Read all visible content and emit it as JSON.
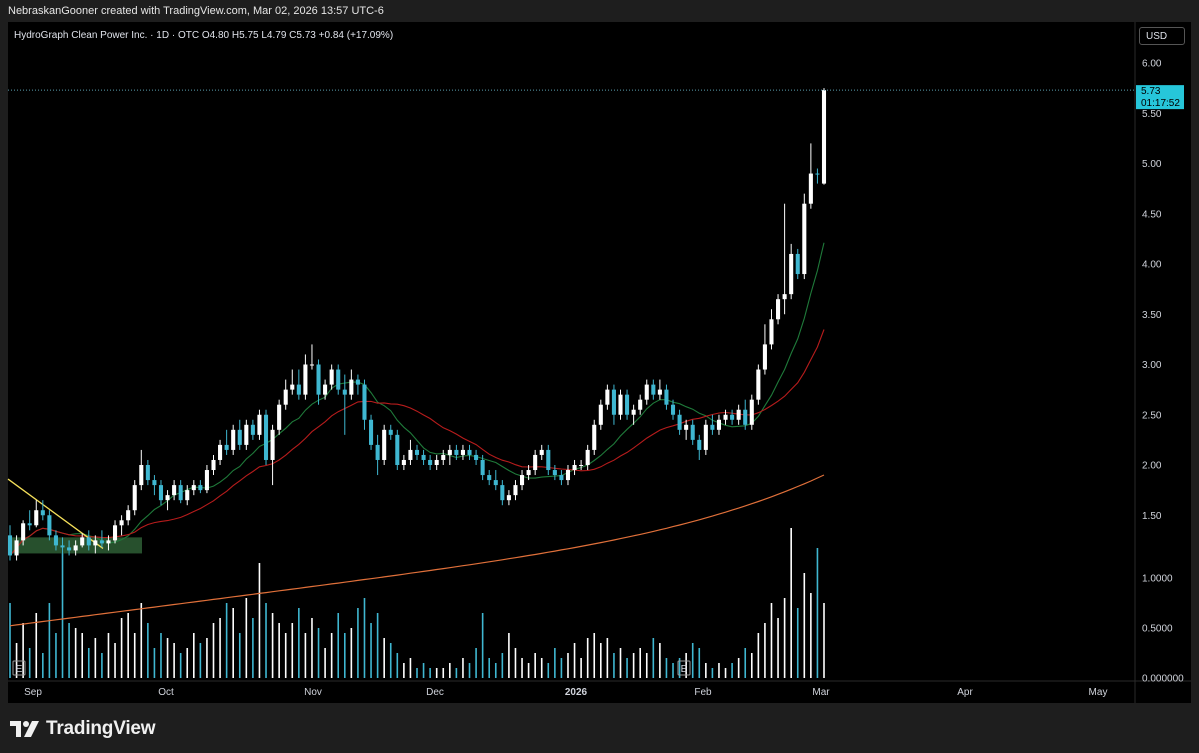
{
  "header": {
    "credit": "NebraskanGooner created with TradingView.com, Mar 02, 2026 13:57 UTC-6"
  },
  "legend": {
    "symbol": "HydroGraph Clean Power Inc. · 1D · OTC",
    "open_label": "O",
    "open": "4.80",
    "high_label": "H",
    "high": "5.75",
    "low_label": "L",
    "low": "4.79",
    "close_label": "C",
    "close": "5.73",
    "change": "+0.84 (+17.09%)"
  },
  "currency": "USD",
  "price_tag": {
    "price": "5.73",
    "countdown": "01:17:52"
  },
  "earnings_marker": "E",
  "footer": {
    "brand": "TradingView"
  },
  "colors": {
    "up": "#ffffff",
    "down": "#3fb7d1",
    "ma_fast": "#1f7a3a",
    "ma_mid": "#b71c1c",
    "ma_slow": "#e0703a",
    "trendline": "#f5e05a",
    "zone": "#2e5e35",
    "tag": "#26c6da"
  },
  "chart_data": {
    "type": "candlestick",
    "title": "HydroGraph Clean Power Inc. · 1D · OTC",
    "ylabel": "USD",
    "ylim": [
      0,
      6.2
    ],
    "y_ticks": [
      "6.00",
      "5.50",
      "5.00",
      "4.50",
      "4.00",
      "3.50",
      "3.00",
      "2.50",
      "2.00",
      "1.50",
      "1.0000",
      "0.5000",
      "0.000000"
    ],
    "x_ticks": [
      "Sep",
      "Oct",
      "Nov",
      "Dec",
      "2026",
      "Feb",
      "Mar",
      "Apr",
      "May"
    ],
    "last_price": 5.73,
    "candles": [
      [
        1.3,
        1.4,
        1.05,
        1.1
      ],
      [
        1.1,
        1.3,
        1.05,
        1.25
      ],
      [
        1.25,
        1.45,
        1.2,
        1.42
      ],
      [
        1.42,
        1.55,
        1.35,
        1.4
      ],
      [
        1.4,
        1.65,
        1.38,
        1.55
      ],
      [
        1.55,
        1.65,
        1.45,
        1.5
      ],
      [
        1.5,
        1.55,
        1.25,
        1.3
      ],
      [
        1.3,
        1.35,
        1.15,
        1.2
      ],
      [
        1.2,
        1.28,
        1.12,
        1.18
      ],
      [
        1.18,
        1.25,
        1.1,
        1.15
      ],
      [
        1.15,
        1.25,
        1.1,
        1.2
      ],
      [
        1.2,
        1.32,
        1.18,
        1.28
      ],
      [
        1.28,
        1.35,
        1.15,
        1.2
      ],
      [
        1.2,
        1.3,
        1.12,
        1.25
      ],
      [
        1.25,
        1.35,
        1.18,
        1.22
      ],
      [
        1.22,
        1.3,
        1.15,
        1.25
      ],
      [
        1.25,
        1.45,
        1.22,
        1.4
      ],
      [
        1.4,
        1.5,
        1.3,
        1.45
      ],
      [
        1.45,
        1.6,
        1.4,
        1.55
      ],
      [
        1.55,
        1.85,
        1.5,
        1.8
      ],
      [
        1.8,
        2.15,
        1.75,
        2.0
      ],
      [
        2.0,
        2.05,
        1.8,
        1.85
      ],
      [
        1.85,
        1.9,
        1.7,
        1.8
      ],
      [
        1.8,
        1.85,
        1.6,
        1.65
      ],
      [
        1.65,
        1.75,
        1.55,
        1.7
      ],
      [
        1.7,
        1.85,
        1.65,
        1.8
      ],
      [
        1.8,
        1.85,
        1.62,
        1.65
      ],
      [
        1.65,
        1.8,
        1.6,
        1.75
      ],
      [
        1.75,
        1.85,
        1.7,
        1.8
      ],
      [
        1.8,
        1.85,
        1.72,
        1.75
      ],
      [
        1.75,
        2.0,
        1.72,
        1.95
      ],
      [
        1.95,
        2.1,
        1.9,
        2.05
      ],
      [
        2.05,
        2.25,
        2.0,
        2.2
      ],
      [
        2.2,
        2.35,
        2.1,
        2.15
      ],
      [
        2.15,
        2.4,
        2.1,
        2.35
      ],
      [
        2.35,
        2.45,
        2.15,
        2.2
      ],
      [
        2.2,
        2.45,
        2.15,
        2.4
      ],
      [
        2.4,
        2.45,
        2.25,
        2.3
      ],
      [
        2.3,
        2.55,
        2.25,
        2.5
      ],
      [
        2.5,
        2.55,
        2.0,
        2.05
      ],
      [
        2.05,
        2.4,
        1.8,
        2.35
      ],
      [
        2.35,
        2.65,
        2.3,
        2.6
      ],
      [
        2.6,
        2.85,
        2.55,
        2.75
      ],
      [
        2.75,
        2.95,
        2.7,
        2.8
      ],
      [
        2.8,
        2.95,
        2.65,
        2.7
      ],
      [
        2.7,
        3.1,
        2.65,
        3.0
      ],
      [
        3.0,
        3.2,
        2.95,
        3.0
      ],
      [
        3.0,
        3.05,
        2.6,
        2.7
      ],
      [
        2.7,
        2.85,
        2.65,
        2.8
      ],
      [
        2.8,
        3.0,
        2.75,
        2.95
      ],
      [
        2.95,
        3.0,
        2.7,
        2.75
      ],
      [
        2.75,
        2.9,
        2.3,
        2.7
      ],
      [
        2.7,
        2.95,
        2.65,
        2.85
      ],
      [
        2.85,
        2.9,
        2.7,
        2.8
      ],
      [
        2.8,
        2.85,
        2.35,
        2.45
      ],
      [
        2.45,
        2.5,
        2.15,
        2.2
      ],
      [
        2.2,
        2.3,
        1.9,
        2.05
      ],
      [
        2.05,
        2.4,
        2.0,
        2.35
      ],
      [
        2.35,
        2.4,
        2.25,
        2.3
      ],
      [
        2.3,
        2.35,
        1.95,
        2.0
      ],
      [
        2.0,
        2.1,
        1.95,
        2.05
      ],
      [
        2.05,
        2.25,
        2.0,
        2.15
      ],
      [
        2.15,
        2.2,
        2.05,
        2.1
      ],
      [
        2.1,
        2.15,
        2.0,
        2.05
      ],
      [
        2.05,
        2.1,
        1.95,
        2.0
      ],
      [
        2.0,
        2.1,
        1.95,
        2.05
      ],
      [
        2.05,
        2.15,
        2.0,
        2.1
      ],
      [
        2.1,
        2.2,
        2.0,
        2.15
      ],
      [
        2.15,
        2.2,
        2.05,
        2.1
      ],
      [
        2.1,
        2.2,
        2.05,
        2.15
      ],
      [
        2.15,
        2.2,
        2.05,
        2.1
      ],
      [
        2.1,
        2.15,
        2.0,
        2.05
      ],
      [
        2.05,
        2.1,
        1.85,
        1.9
      ],
      [
        1.9,
        1.95,
        1.8,
        1.85
      ],
      [
        1.85,
        1.95,
        1.75,
        1.8
      ],
      [
        1.8,
        1.85,
        1.6,
        1.65
      ],
      [
        1.65,
        1.75,
        1.6,
        1.7
      ],
      [
        1.7,
        1.85,
        1.65,
        1.8
      ],
      [
        1.8,
        1.95,
        1.75,
        1.9
      ],
      [
        1.9,
        2.0,
        1.85,
        1.95
      ],
      [
        1.95,
        2.15,
        1.9,
        2.1
      ],
      [
        2.1,
        2.2,
        2.05,
        2.15
      ],
      [
        2.15,
        2.2,
        1.9,
        1.95
      ],
      [
        1.95,
        2.0,
        1.85,
        1.9
      ],
      [
        1.9,
        1.95,
        1.8,
        1.85
      ],
      [
        1.85,
        2.0,
        1.8,
        1.95
      ],
      [
        1.95,
        2.05,
        1.9,
        2.0
      ],
      [
        2.0,
        2.05,
        1.95,
        2.0
      ],
      [
        2.0,
        2.2,
        1.95,
        2.15
      ],
      [
        2.15,
        2.45,
        2.1,
        2.4
      ],
      [
        2.4,
        2.65,
        2.35,
        2.6
      ],
      [
        2.6,
        2.8,
        2.55,
        2.75
      ],
      [
        2.75,
        2.8,
        2.4,
        2.5
      ],
      [
        2.5,
        2.75,
        2.45,
        2.7
      ],
      [
        2.7,
        2.75,
        2.45,
        2.5
      ],
      [
        2.5,
        2.6,
        2.4,
        2.55
      ],
      [
        2.55,
        2.7,
        2.5,
        2.65
      ],
      [
        2.65,
        2.85,
        2.6,
        2.8
      ],
      [
        2.8,
        2.85,
        2.65,
        2.7
      ],
      [
        2.7,
        2.85,
        2.65,
        2.75
      ],
      [
        2.75,
        2.8,
        2.55,
        2.6
      ],
      [
        2.6,
        2.65,
        2.45,
        2.5
      ],
      [
        2.5,
        2.55,
        2.3,
        2.35
      ],
      [
        2.35,
        2.45,
        2.25,
        2.4
      ],
      [
        2.4,
        2.45,
        2.2,
        2.25
      ],
      [
        2.25,
        2.3,
        2.05,
        2.15
      ],
      [
        2.15,
        2.45,
        2.1,
        2.4
      ],
      [
        2.4,
        2.5,
        2.3,
        2.35
      ],
      [
        2.35,
        2.5,
        2.3,
        2.45
      ],
      [
        2.45,
        2.55,
        2.4,
        2.5
      ],
      [
        2.5,
        2.55,
        2.4,
        2.45
      ],
      [
        2.45,
        2.6,
        2.4,
        2.55
      ],
      [
        2.55,
        2.65,
        2.35,
        2.4
      ],
      [
        2.4,
        2.7,
        2.35,
        2.65
      ],
      [
        2.65,
        3.0,
        2.6,
        2.95
      ],
      [
        2.95,
        3.4,
        2.9,
        3.2
      ],
      [
        3.2,
        3.55,
        3.15,
        3.45
      ],
      [
        3.45,
        3.7,
        3.4,
        3.65
      ],
      [
        3.65,
        4.6,
        3.5,
        3.7
      ],
      [
        3.7,
        4.2,
        3.65,
        4.1
      ],
      [
        4.1,
        4.15,
        3.85,
        3.9
      ],
      [
        3.9,
        4.7,
        3.85,
        4.6
      ],
      [
        4.6,
        5.2,
        4.55,
        4.9
      ],
      [
        4.9,
        4.95,
        4.8,
        4.89
      ],
      [
        4.8,
        5.75,
        4.79,
        5.73
      ]
    ],
    "volume": [
      0.75,
      0.35,
      0.55,
      0.3,
      0.65,
      0.25,
      0.75,
      0.45,
      1.25,
      0.55,
      0.5,
      0.45,
      0.3,
      0.4,
      0.25,
      0.45,
      0.35,
      0.6,
      0.65,
      0.45,
      0.75,
      0.55,
      0.3,
      0.45,
      0.4,
      0.35,
      0.25,
      0.3,
      0.45,
      0.35,
      0.4,
      0.55,
      0.6,
      0.75,
      0.7,
      0.45,
      0.8,
      0.6,
      1.15,
      0.75,
      0.65,
      0.55,
      0.45,
      0.55,
      0.7,
      0.45,
      0.6,
      0.5,
      0.3,
      0.45,
      0.65,
      0.45,
      0.5,
      0.7,
      0.8,
      0.55,
      0.65,
      0.4,
      0.35,
      0.25,
      0.15,
      0.2,
      0.1,
      0.15,
      0.1,
      0.1,
      0.1,
      0.15,
      0.1,
      0.2,
      0.15,
      0.3,
      0.65,
      0.2,
      0.15,
      0.25,
      0.45,
      0.3,
      0.2,
      0.15,
      0.25,
      0.2,
      0.15,
      0.3,
      0.2,
      0.25,
      0.35,
      0.2,
      0.4,
      0.45,
      0.35,
      0.4,
      0.25,
      0.3,
      0.2,
      0.25,
      0.3,
      0.25,
      0.4,
      0.35,
      0.2,
      0.15,
      0.2,
      0.25,
      0.35,
      0.3,
      0.15,
      0.1,
      0.15,
      0.1,
      0.15,
      0.2,
      0.3,
      0.25,
      0.45,
      0.55,
      0.75,
      0.6,
      0.8,
      1.5,
      0.7,
      1.05,
      0.85,
      1.3,
      0.75
    ],
    "moving_averages": [
      {
        "name": "fast MA",
        "color": "#1f7a3a"
      },
      {
        "name": "mid MA",
        "color": "#b71c1c"
      },
      {
        "name": "slow MA",
        "color": "#e0703a"
      }
    ],
    "annotations": [
      "descending trendline (yellow)",
      "support zone ~1.15-1.30 (green)"
    ]
  }
}
